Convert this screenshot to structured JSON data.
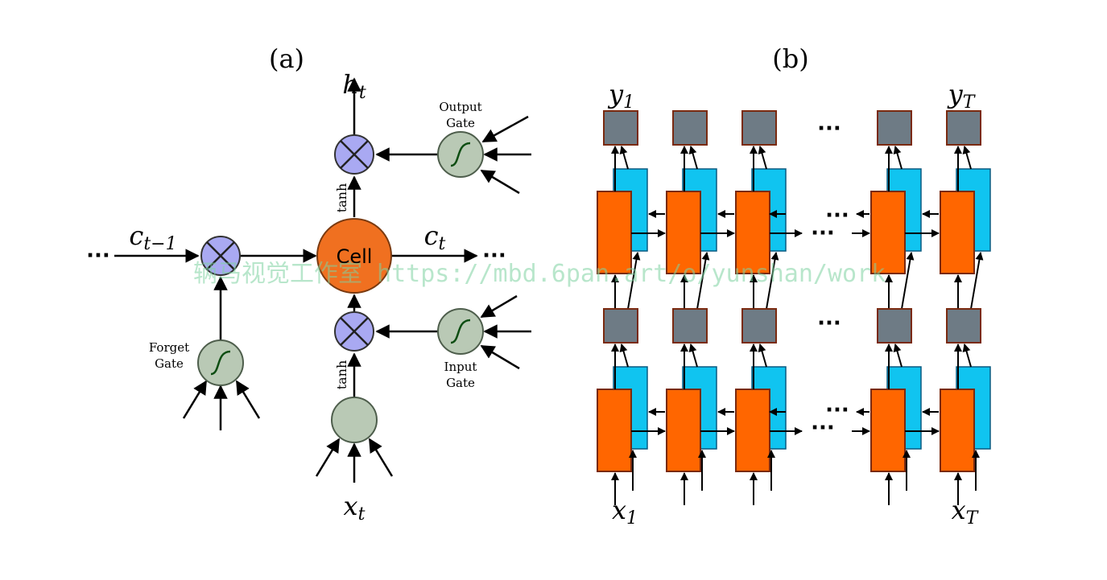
{
  "panel_a": {
    "label": "(a)",
    "h": "h",
    "h_sub": "t",
    "c_prev": "c",
    "c_prev_sub": "t−1",
    "c": "c",
    "c_sub": "t",
    "x": "x",
    "x_sub": "t",
    "cell": "Cell",
    "output_gate": [
      "Output",
      "Gate"
    ],
    "input_gate": [
      "Input",
      "Gate"
    ],
    "forget_gate": [
      "Forget",
      "Gate"
    ],
    "tanh": "tanh",
    "ellipsis": "···"
  },
  "panel_b": {
    "label": "(b)",
    "y1": "y",
    "y1_sub": "1",
    "yT": "y",
    "yT_sub": "T",
    "x1": "x",
    "x1_sub": "1",
    "xT": "x",
    "xT_sub": "T",
    "ellipsis": "···"
  },
  "watermark": "辆马视觉工作室 https://mbd.6pan.art/o/yunshan/work",
  "colors": {
    "cell": "#f07020",
    "multiply": "#a9a9f2",
    "gate": "#b9c9b5",
    "orange_block": "#ff6600",
    "blue_block": "#10c4f0",
    "gray_block": "#6e7b85",
    "block_border": "#7a2a10"
  }
}
